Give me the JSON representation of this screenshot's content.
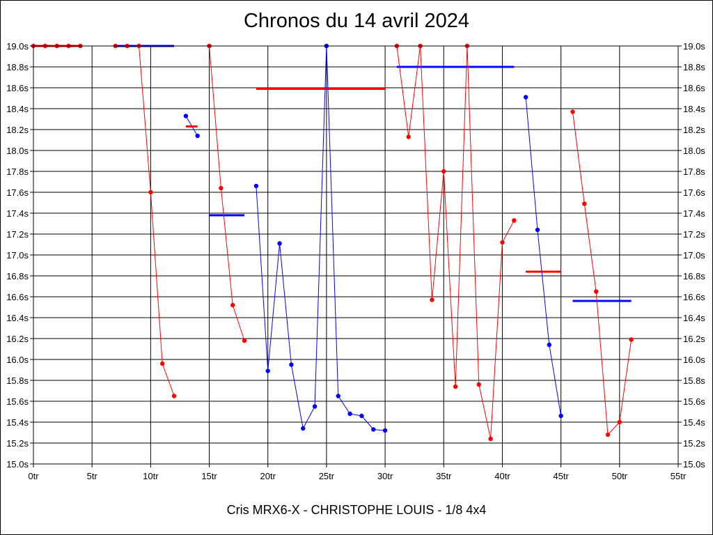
{
  "chart_data": {
    "type": "line",
    "title": "Chronos du 14 avril 2024",
    "subtitle": "Cris MRX6-X - CHRISTOPHE LOUIS - 1/8 4x4",
    "xlim": [
      0,
      55
    ],
    "ylim": [
      15.0,
      19.0
    ],
    "grid": true,
    "x_ticks": [
      0,
      5,
      10,
      15,
      20,
      25,
      30,
      35,
      40,
      45,
      50,
      55
    ],
    "x_tick_labels": [
      "0tr",
      "5tr",
      "10tr",
      "15tr",
      "20tr",
      "25tr",
      "30tr",
      "35tr",
      "40tr",
      "45tr",
      "50tr",
      "55tr"
    ],
    "y_ticks": [
      15.0,
      15.2,
      15.4,
      15.6,
      15.8,
      16.0,
      16.2,
      16.4,
      16.6,
      16.8,
      17.0,
      17.2,
      17.4,
      17.6,
      17.8,
      18.0,
      18.2,
      18.4,
      18.6,
      18.8,
      19.0
    ],
    "y_tick_labels": [
      "15.0s",
      "15.2s",
      "15.4s",
      "15.6s",
      "15.8s",
      "16.0s",
      "16.2s",
      "16.4s",
      "16.6s",
      "16.8s",
      "17.0s",
      "17.2s",
      "17.4s",
      "17.6s",
      "17.8s",
      "18.0s",
      "18.2s",
      "18.4s",
      "18.6s",
      "18.8s",
      "19.0s"
    ],
    "colors": {
      "red": "#ff0000",
      "blue": "#0000ff"
    },
    "series": [
      {
        "color": "red",
        "points": [
          [
            0,
            19.0
          ],
          [
            1,
            19.0
          ],
          [
            2,
            19.0
          ],
          [
            3,
            19.0
          ],
          [
            4,
            19.0
          ]
        ]
      },
      {
        "color": "red",
        "points": [
          [
            7,
            19.0
          ],
          [
            8,
            19.0
          ],
          [
            9,
            19.0
          ],
          [
            10,
            17.6
          ],
          [
            11,
            15.96
          ],
          [
            12,
            15.65
          ]
        ]
      },
      {
        "color": "blue",
        "points": [
          [
            13,
            18.33
          ],
          [
            14,
            18.14
          ]
        ]
      },
      {
        "color": "red",
        "points": [
          [
            15,
            19.0
          ],
          [
            16,
            17.64
          ],
          [
            17,
            16.52
          ],
          [
            18,
            16.18
          ]
        ]
      },
      {
        "color": "blue",
        "points": [
          [
            19,
            17.66
          ],
          [
            20,
            15.89
          ],
          [
            21,
            17.11
          ],
          [
            22,
            15.95
          ],
          [
            23,
            15.34
          ],
          [
            24,
            15.55
          ],
          [
            25,
            19.0
          ],
          [
            26,
            15.65
          ],
          [
            27,
            15.48
          ],
          [
            28,
            15.46
          ],
          [
            29,
            15.33
          ],
          [
            30,
            15.32
          ]
        ]
      },
      {
        "color": "red",
        "points": [
          [
            31,
            19.0
          ],
          [
            32,
            18.13
          ],
          [
            33,
            19.0
          ],
          [
            34,
            16.57
          ],
          [
            35,
            17.8
          ],
          [
            36,
            15.74
          ],
          [
            37,
            19.0
          ],
          [
            38,
            15.76
          ],
          [
            39,
            15.24
          ],
          [
            40,
            17.12
          ],
          [
            41,
            17.33
          ]
        ]
      },
      {
        "color": "blue",
        "points": [
          [
            42,
            18.51
          ],
          [
            43,
            17.24
          ],
          [
            44,
            16.14
          ],
          [
            45,
            15.46
          ]
        ]
      },
      {
        "color": "red",
        "points": [
          [
            46,
            18.37
          ],
          [
            47,
            17.49
          ],
          [
            48,
            16.65
          ],
          [
            49,
            15.28
          ],
          [
            50,
            15.4
          ],
          [
            51,
            16.19
          ]
        ]
      }
    ],
    "averages": [
      {
        "color": "red",
        "x": [
          0,
          4
        ],
        "y": 19.0
      },
      {
        "color": "blue",
        "x": [
          7,
          12
        ],
        "y": 19.0
      },
      {
        "color": "red",
        "x": [
          13,
          14
        ],
        "y": 18.23
      },
      {
        "color": "blue",
        "x": [
          15,
          18
        ],
        "y": 17.38
      },
      {
        "color": "red",
        "x": [
          19,
          30
        ],
        "y": 18.59
      },
      {
        "color": "blue",
        "x": [
          31,
          41
        ],
        "y": 18.8
      },
      {
        "color": "red",
        "x": [
          42,
          45
        ],
        "y": 16.84
      },
      {
        "color": "blue",
        "x": [
          46,
          51
        ],
        "y": 16.56
      }
    ]
  }
}
